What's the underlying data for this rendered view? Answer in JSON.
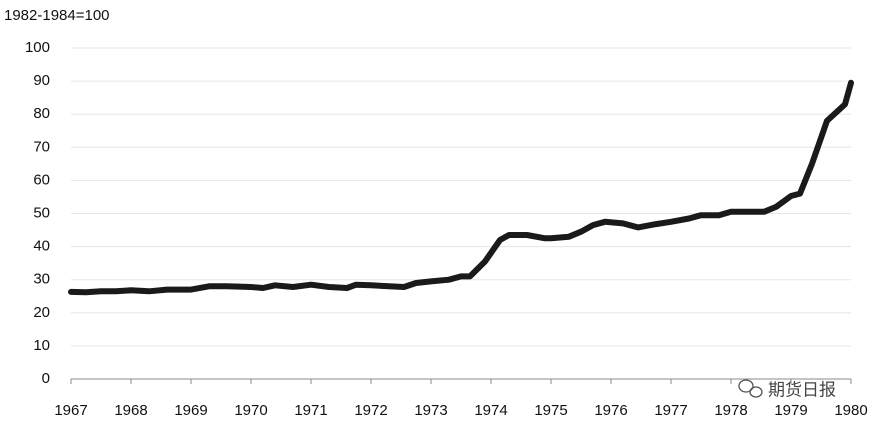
{
  "chart_data": {
    "type": "line",
    "ylabel": "1982-1984=100",
    "watermark": "期货日报",
    "xlim": [
      1967,
      1980
    ],
    "xticks": [
      1967,
      1968,
      1969,
      1970,
      1971,
      1972,
      1973,
      1974,
      1975,
      1976,
      1977,
      1978,
      1979,
      1980
    ],
    "ylim": [
      0,
      100
    ],
    "yticks": [
      0,
      10,
      20,
      30,
      40,
      50,
      60,
      70,
      80,
      90,
      100
    ],
    "grid": true,
    "series": [
      {
        "color": "#1a1a1a",
        "x": [
          1967.0,
          1967.25,
          1967.5,
          1967.75,
          1968.0,
          1968.3,
          1968.6,
          1969.0,
          1969.3,
          1969.6,
          1970.0,
          1970.2,
          1970.4,
          1970.7,
          1971.0,
          1971.3,
          1971.6,
          1971.75,
          1972.0,
          1972.3,
          1972.55,
          1972.75,
          1973.0,
          1973.3,
          1973.5,
          1973.65,
          1973.9,
          1974.15,
          1974.3,
          1974.6,
          1974.9,
          1975.0,
          1975.3,
          1975.5,
          1975.7,
          1975.9,
          1976.2,
          1976.45,
          1976.75,
          1977.0,
          1977.3,
          1977.5,
          1977.8,
          1978.0,
          1978.3,
          1978.55,
          1978.75,
          1979.0,
          1979.15,
          1979.35,
          1979.6,
          1979.9,
          1980.0
        ],
        "values": [
          26.3,
          26.2,
          26.5,
          26.5,
          26.8,
          26.5,
          27,
          27,
          28,
          28,
          27.8,
          27.5,
          28.3,
          27.8,
          28.5,
          27.8,
          27.5,
          28.5,
          28.3,
          28,
          27.8,
          29,
          29.5,
          30,
          31,
          31,
          35.5,
          42,
          43.5,
          43.5,
          42.5,
          42.5,
          43,
          44.5,
          46.5,
          47.5,
          47,
          45.8,
          46.8,
          47.5,
          48.5,
          49.5,
          49.5,
          50.5,
          50.5,
          50.5,
          52,
          55.3,
          56,
          65,
          78,
          83,
          89.5
        ]
      }
    ]
  }
}
